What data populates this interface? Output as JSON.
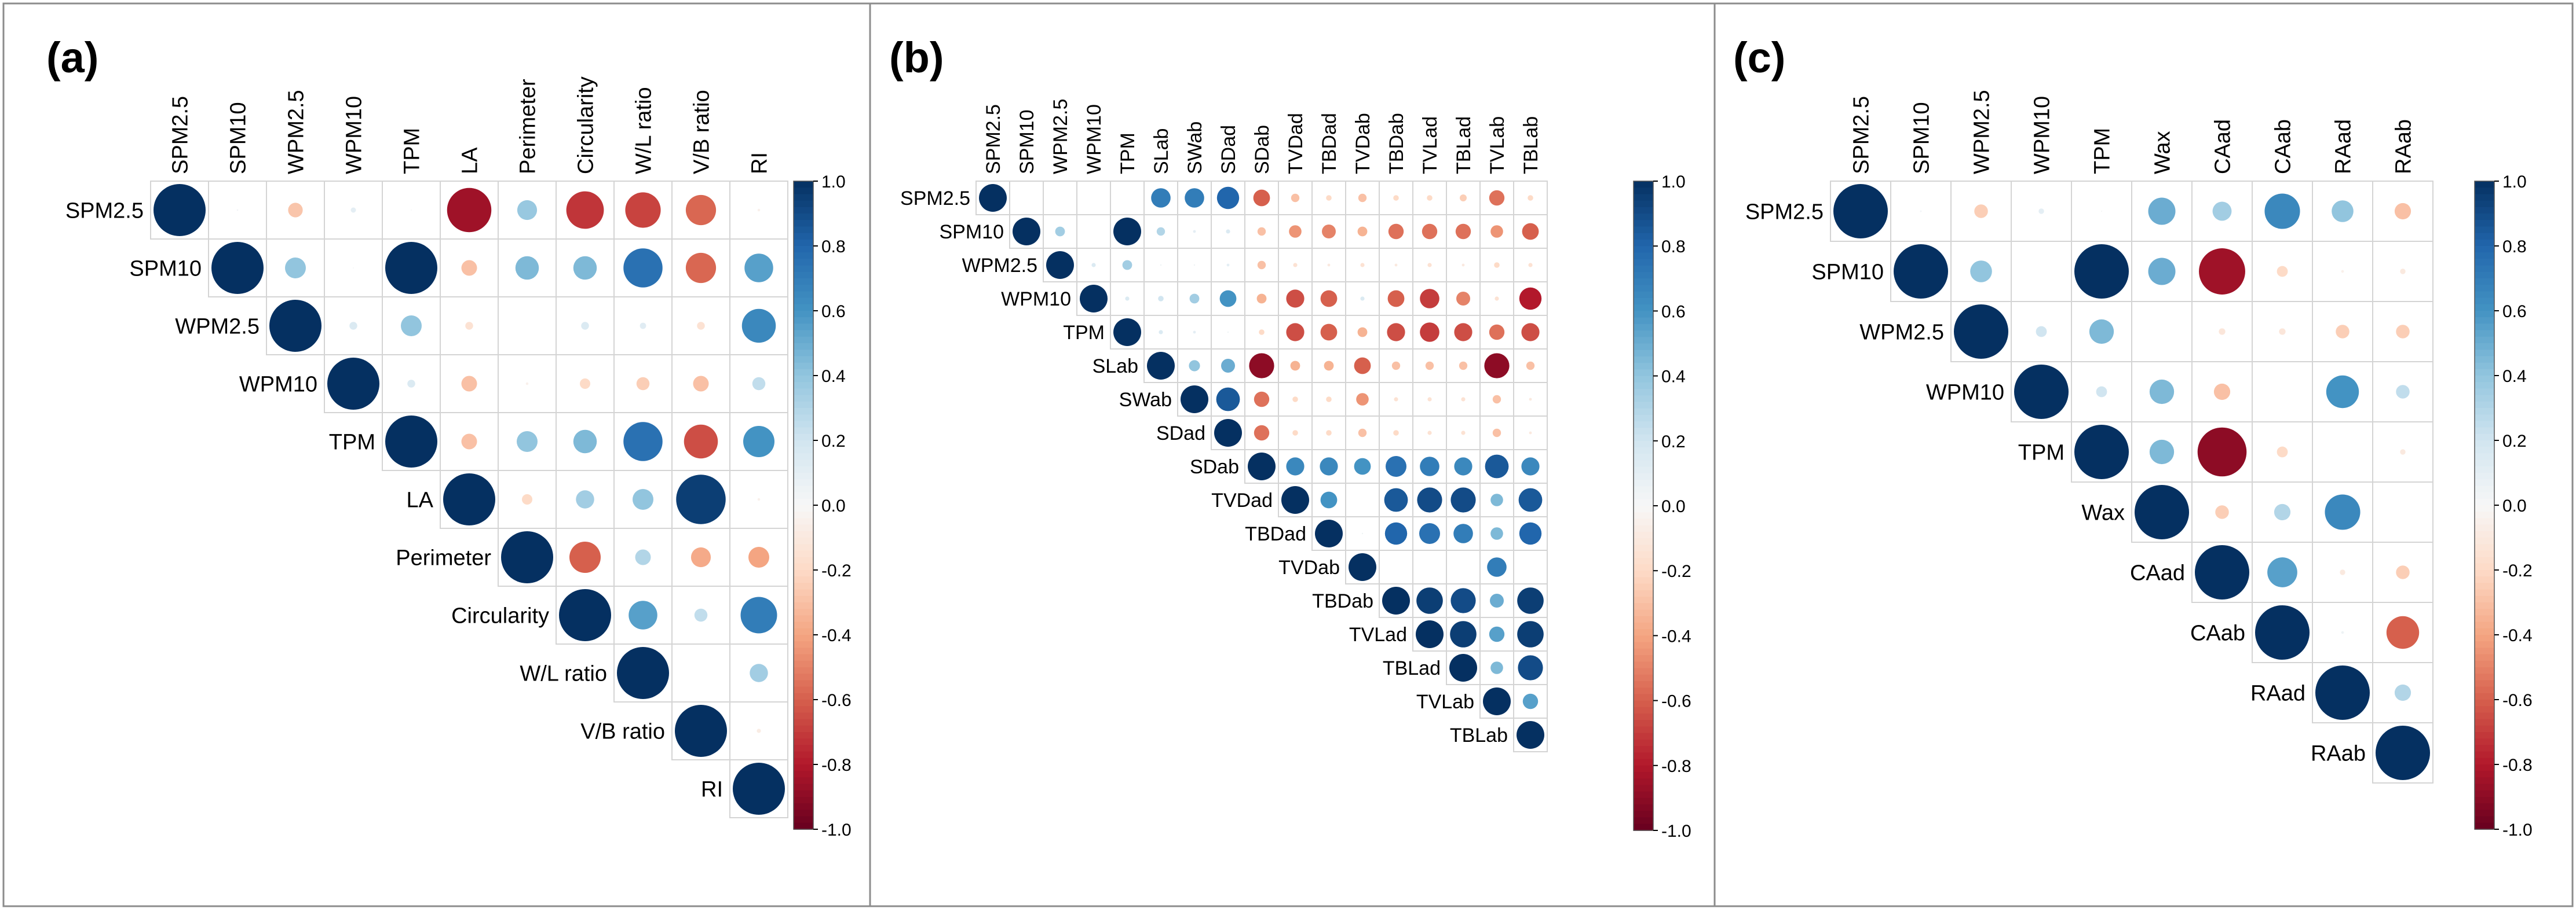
{
  "chart_data": [
    {
      "type": "heatmap",
      "panel_label": "(a)",
      "title": "",
      "variables": [
        "SPM2.5",
        "SPM10",
        "WPM2.5",
        "WPM10",
        "TPM",
        "LA",
        "Perimeter",
        "Circularity",
        "W/L ratio",
        "V/B ratio",
        "RI"
      ],
      "upper_triangle": [
        [
          1.0,
          0.03,
          -0.28,
          0.1,
          0.02,
          -0.85,
          0.38,
          -0.72,
          -0.68,
          -0.58,
          -0.05
        ],
        [
          1.0,
          0.4,
          0.02,
          1.0,
          -0.3,
          0.45,
          0.45,
          0.75,
          -0.58,
          0.55
        ],
        [
          1.0,
          0.15,
          0.4,
          -0.15,
          0.0,
          0.15,
          0.12,
          -0.15,
          0.65
        ],
        [
          1.0,
          0.15,
          -0.3,
          -0.05,
          -0.2,
          -0.25,
          -0.3,
          0.25
        ],
        [
          1.0,
          -0.3,
          0.4,
          0.45,
          0.75,
          -0.65,
          0.6
        ],
        [
          1.0,
          -0.2,
          0.35,
          0.4,
          0.95,
          -0.05
        ],
        [
          1.0,
          -0.6,
          0.3,
          -0.38,
          -0.4
        ],
        [
          1.0,
          0.55,
          0.25,
          0.7
        ],
        [
          1.0,
          0.0,
          0.35
        ],
        [
          1.0,
          -0.08
        ],
        [
          1.0
        ]
      ],
      "colorbar": {
        "min": -1.0,
        "max": 1.0,
        "ticks": [
          "1.0",
          "0.8",
          "0.6",
          "0.4",
          "0.2",
          "0.0",
          "-0.2",
          "-0.4",
          "-0.6",
          "-0.8",
          "-1.0"
        ]
      }
    },
    {
      "type": "heatmap",
      "panel_label": "(b)",
      "title": "",
      "variables": [
        "SPM2.5",
        "SPM10",
        "WPM2.5",
        "WPM10",
        "TPM",
        "SLab",
        "SWab",
        "SDad",
        "SDab",
        "TVDad",
        "TBDad",
        "TVDab",
        "TBDab",
        "TVLad",
        "TBLad",
        "TVLab",
        "TBLab"
      ],
      "upper_triangle": [
        [
          1.0,
          0.02,
          0.02,
          0.0,
          0.0,
          0.7,
          0.7,
          0.8,
          -0.6,
          -0.3,
          -0.2,
          -0.3,
          -0.2,
          -0.2,
          -0.25,
          -0.55,
          -0.2
        ],
        [
          1.0,
          0.35,
          0.02,
          1.0,
          0.3,
          0.1,
          0.15,
          -0.3,
          -0.45,
          -0.5,
          -0.35,
          -0.55,
          -0.55,
          -0.55,
          -0.45,
          -0.6
        ],
        [
          1.0,
          0.15,
          0.35,
          0.05,
          0.05,
          0.1,
          -0.3,
          -0.15,
          -0.1,
          -0.15,
          -0.1,
          -0.15,
          -0.1,
          -0.2,
          -0.15
        ],
        [
          1.0,
          0.15,
          0.2,
          0.35,
          0.6,
          -0.35,
          -0.65,
          -0.6,
          0.15,
          -0.6,
          -0.7,
          -0.5,
          -0.15,
          -0.8
        ],
        [
          1.0,
          0.15,
          0.1,
          0.05,
          -0.2,
          -0.65,
          -0.6,
          -0.35,
          -0.65,
          -0.7,
          -0.65,
          -0.55,
          -0.65
        ],
        [
          1.0,
          0.4,
          0.5,
          -0.9,
          -0.35,
          -0.35,
          -0.6,
          -0.3,
          -0.3,
          -0.3,
          -0.9,
          -0.3
        ],
        [
          1.0,
          0.85,
          -0.55,
          -0.2,
          -0.2,
          -0.45,
          -0.15,
          -0.15,
          -0.15,
          -0.3,
          -0.1
        ],
        [
          1.0,
          -0.55,
          -0.2,
          -0.2,
          -0.3,
          -0.2,
          -0.15,
          -0.15,
          -0.3,
          -0.1
        ],
        [
          1.0,
          0.65,
          0.65,
          0.6,
          0.75,
          0.7,
          0.65,
          0.85,
          0.65
        ],
        [
          1.0,
          0.6,
          0.0,
          0.85,
          0.9,
          0.9,
          0.45,
          0.85
        ],
        [
          1.0,
          0.05,
          0.8,
          0.75,
          0.7,
          0.45,
          0.8
        ],
        [
          1.0,
          0.0,
          0.0,
          0.0,
          0.7,
          0.0
        ],
        [
          1.0,
          0.95,
          0.9,
          0.5,
          0.95
        ],
        [
          1.0,
          0.95,
          0.55,
          0.95
        ],
        [
          1.0,
          0.45,
          0.9
        ],
        [
          1.0,
          0.55
        ],
        [
          1.0
        ]
      ],
      "colorbar": {
        "min": -1.0,
        "max": 1.0,
        "ticks": [
          "1.0",
          "0.8",
          "0.6",
          "0.4",
          "0.2",
          "0.0",
          "-0.2",
          "-0.4",
          "-0.6",
          "-0.8",
          "-1.0"
        ]
      }
    },
    {
      "type": "heatmap",
      "panel_label": "(c)",
      "title": "",
      "variables": [
        "SPM2.5",
        "SPM10",
        "WPM2.5",
        "WPM10",
        "TPM",
        "Wax",
        "CAad",
        "CAab",
        "RAad",
        "RAab"
      ],
      "upper_triangle": [
        [
          1.0,
          0.03,
          -0.25,
          0.1,
          0.02,
          0.5,
          0.35,
          0.65,
          0.4,
          -0.3
        ],
        [
          1.0,
          0.4,
          0.0,
          1.0,
          0.5,
          -0.85,
          -0.2,
          -0.05,
          -0.1
        ],
        [
          1.0,
          0.2,
          0.45,
          0.0,
          -0.12,
          -0.12,
          -0.25,
          -0.25
        ],
        [
          1.0,
          0.2,
          0.45,
          -0.3,
          0.0,
          0.6,
          0.25
        ],
        [
          1.0,
          0.45,
          -0.9,
          -0.2,
          0.0,
          -0.1
        ],
        [
          1.0,
          -0.25,
          0.3,
          0.65,
          0.0
        ],
        [
          1.0,
          0.55,
          -0.1,
          -0.25
        ],
        [
          1.0,
          0.05,
          -0.6
        ],
        [
          1.0,
          0.3
        ],
        [
          1.0
        ]
      ],
      "colorbar": {
        "min": -1.0,
        "max": 1.0,
        "ticks": [
          "1.0",
          "0.8",
          "0.6",
          "0.4",
          "0.2",
          "0.0",
          "-0.2",
          "-0.4",
          "-0.6",
          "-0.8",
          "-1.0"
        ]
      }
    }
  ]
}
